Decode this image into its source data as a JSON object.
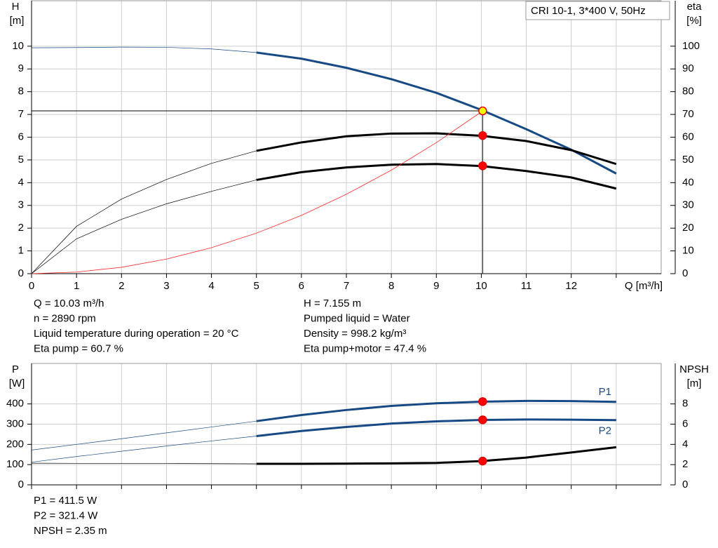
{
  "chart_data": [
    {
      "type": "line",
      "title": "CRI 10-1, 3*400 V, 50Hz",
      "ylabel": "H",
      "yunit": "[m]",
      "y2label": "eta",
      "y2unit": "[%]",
      "xlabel": "Q [m³/h]",
      "x": [
        0,
        1,
        2,
        3,
        4,
        5,
        6,
        7,
        8,
        9,
        10,
        11,
        12,
        13
      ],
      "xlim": [
        0,
        14
      ],
      "xticks": [
        0,
        1,
        2,
        3,
        4,
        5,
        6,
        7,
        8,
        9,
        10,
        11,
        12,
        13
      ],
      "ylim": [
        0,
        12
      ],
      "yticks": [
        0,
        1,
        2,
        3,
        4,
        5,
        6,
        7,
        8,
        9,
        10
      ],
      "y2lim": [
        0,
        120
      ],
      "y2ticks": [
        0,
        10,
        20,
        30,
        40,
        50,
        60,
        70,
        80,
        90,
        100
      ],
      "grid": true,
      "thick_from": 5,
      "crosshair": true,
      "series": [
        {
          "color": "#174a84",
          "values": [
            9.93,
            9.94,
            9.96,
            9.95,
            9.88,
            9.72,
            9.45,
            9.05,
            8.55,
            7.95,
            7.2,
            6.35,
            5.45,
            4.4
          ]
        },
        {
          "color": "#000000",
          "axis": "y2",
          "values": [
            0,
            20.8,
            32.8,
            41.4,
            48.5,
            54,
            57.7,
            60.4,
            61.6,
            61.7,
            60.6,
            58.3,
            54.3,
            48.2
          ]
        },
        {
          "color": "#000000",
          "axis": "y2",
          "values": [
            0,
            15.3,
            23.9,
            30.7,
            36.2,
            41.2,
            44.6,
            46.7,
            47.9,
            48.2,
            47.3,
            45.1,
            42.3,
            37.4
          ]
        },
        {
          "color": "#ff2a2a",
          "thin": true,
          "values": [
            0,
            0.07,
            0.28,
            0.64,
            1.14,
            1.78,
            2.56,
            3.49,
            4.55,
            5.76,
            7.11,
            null,
            null,
            null
          ]
        }
      ],
      "markers": [
        {
          "x": 10.03,
          "y": 7.155,
          "color": "#ffff00"
        },
        {
          "x": 10.03,
          "y": 60.7,
          "axis": "y2",
          "color": "#ff0000"
        },
        {
          "x": 10.03,
          "y": 47.4,
          "axis": "y2",
          "color": "#ff0000"
        }
      ],
      "info": [
        [
          "Q = 10.03 m³/h",
          "n = 2890 rpm",
          "Liquid temperature during operation = 20 °C",
          "Eta pump = 60.7 %"
        ],
        [
          "H = 7.155 m",
          "Pumped liquid = Water",
          "Density = 998.2 kg/m³",
          "Eta pump+motor = 47.4 %"
        ]
      ]
    },
    {
      "type": "line",
      "ylabel": "P",
      "yunit": "[W]",
      "y2label": "NPSH",
      "y2unit": "[m]",
      "x": [
        0,
        1,
        2,
        3,
        4,
        5,
        6,
        7,
        8,
        9,
        10,
        11,
        12,
        13
      ],
      "xlim": [
        0,
        14
      ],
      "xticks": [
        0,
        1,
        2,
        3,
        4,
        5,
        6,
        7,
        8,
        9,
        10,
        11,
        12,
        13
      ],
      "ylim": [
        0,
        600
      ],
      "yticks": [
        0,
        100,
        200,
        300,
        400
      ],
      "y2lim": [
        0,
        12
      ],
      "y2ticks": [
        0,
        2,
        4,
        6,
        8
      ],
      "grid": true,
      "thick_from": 5,
      "series": [
        {
          "name": "P1",
          "color": "#174a84",
          "values": [
            172,
            200,
            228,
            257,
            286,
            315,
            345,
            370,
            390,
            403,
            411,
            415,
            414,
            410
          ]
        },
        {
          "name": "P2",
          "color": "#174a84",
          "values": [
            112,
            140,
            166,
            192,
            217,
            241,
            266,
            286,
            303,
            314,
            321,
            323,
            322,
            320
          ]
        },
        {
          "color": "#000000",
          "axis": "y2",
          "values": [
            2.14,
            2.13,
            2.12,
            2.11,
            2.1,
            2.08,
            2.08,
            2.1,
            2.12,
            2.17,
            2.35,
            2.7,
            3.2,
            3.72
          ]
        }
      ],
      "markers": [
        {
          "x": 10.03,
          "y": 411.5,
          "color": "#ff0000"
        },
        {
          "x": 10.03,
          "y": 321.4,
          "color": "#ff0000"
        },
        {
          "x": 10.03,
          "y": 2.35,
          "axis": "y2",
          "color": "#ff0000"
        }
      ],
      "info": [
        [
          "P1 = 411.5 W",
          "P2 = 321.4 W",
          "NPSH = 2.35 m"
        ]
      ]
    }
  ]
}
